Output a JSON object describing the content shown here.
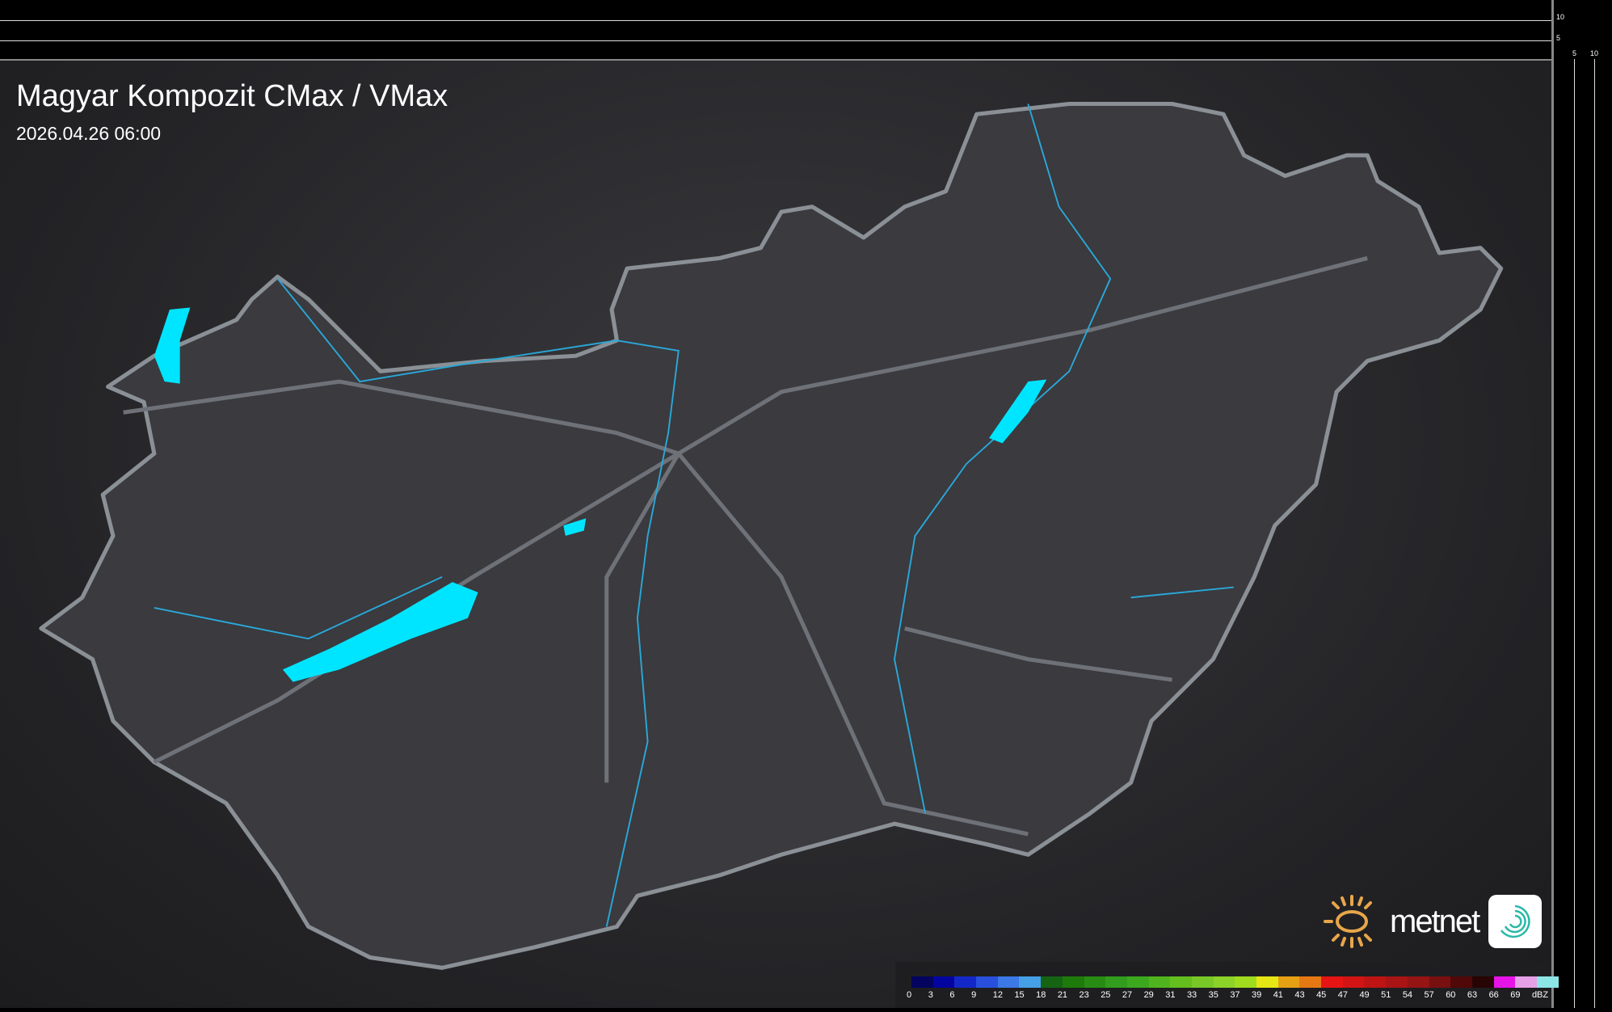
{
  "title": "Magyar Kompozit CMax / VMax",
  "timestamp": "2026.04.26 06:00",
  "scale_ticks": {
    "vertical": [
      "10",
      "5"
    ],
    "horizontal": [
      "5",
      "10"
    ]
  },
  "legend": {
    "unit": "dBZ",
    "labels": [
      "0",
      "3",
      "6",
      "9",
      "12",
      "15",
      "18",
      "21",
      "23",
      "25",
      "27",
      "29",
      "31",
      "33",
      "35",
      "37",
      "39",
      "41",
      "43",
      "45",
      "47",
      "49",
      "51",
      "54",
      "57",
      "60",
      "63",
      "66",
      "69"
    ],
    "colors": [
      "#04045e",
      "#0404a0",
      "#1428c8",
      "#2850dc",
      "#3c78e6",
      "#46a0e6",
      "#146414",
      "#1e7a0a",
      "#288c14",
      "#329c1e",
      "#3ca81e",
      "#50b41e",
      "#64be1e",
      "#78c828",
      "#8cd228",
      "#a0dc1e",
      "#e6e614",
      "#e6a014",
      "#e67814",
      "#e61414",
      "#d21414",
      "#be1414",
      "#aa1414",
      "#961414",
      "#781010",
      "#500808",
      "#280404",
      "#e614e6",
      "#e6a0e6",
      "#8ce6e6"
    ]
  },
  "logo": {
    "brand": "metnet"
  },
  "colors": {
    "water": "#00e5ff",
    "river": "#2aa8d8",
    "border": "#9aa0a6",
    "background": "#000000"
  }
}
